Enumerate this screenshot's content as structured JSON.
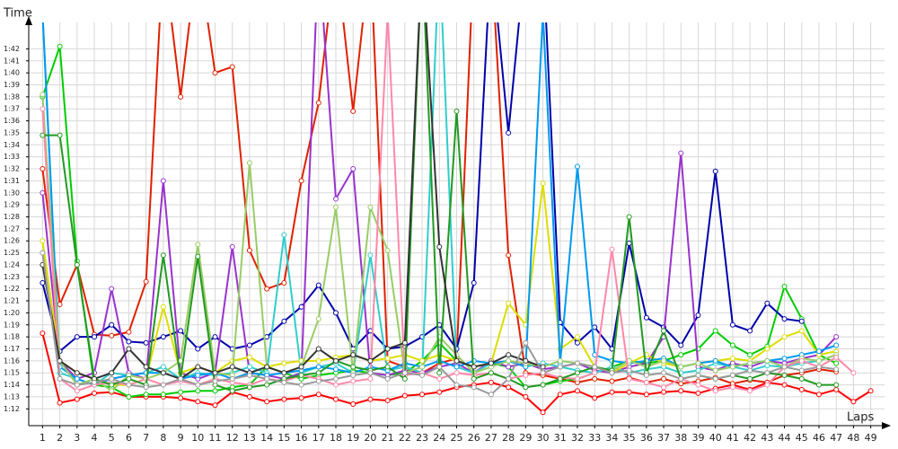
{
  "chart_data": {
    "type": "line",
    "title": "Time",
    "x_label": "Laps",
    "x": [
      1,
      2,
      3,
      4,
      5,
      6,
      7,
      8,
      9,
      10,
      11,
      12,
      13,
      14,
      15,
      16,
      17,
      18,
      19,
      20,
      21,
      22,
      23,
      24,
      25,
      26,
      27,
      28,
      29,
      30,
      31,
      32,
      33,
      34,
      35,
      36,
      37,
      38,
      39,
      40,
      41,
      42,
      43,
      44,
      45,
      46,
      47,
      48,
      49
    ],
    "xlim": [
      0.2,
      49.8
    ],
    "xticks": [
      1,
      2,
      3,
      4,
      5,
      6,
      7,
      8,
      9,
      10,
      11,
      12,
      13,
      14,
      15,
      16,
      17,
      18,
      19,
      20,
      21,
      22,
      23,
      24,
      25,
      26,
      27,
      28,
      29,
      30,
      31,
      32,
      33,
      34,
      35,
      36,
      37,
      38,
      39,
      40,
      41,
      42,
      43,
      44,
      45,
      46,
      47,
      48,
      49
    ],
    "ylim": [
      70.6,
      104.2
    ],
    "yticks": [
      {
        "value": 72,
        "label": "1:12"
      },
      {
        "value": 73,
        "label": "1:13"
      },
      {
        "value": 74,
        "label": "1:14"
      },
      {
        "value": 75,
        "label": "1:15"
      },
      {
        "value": 76,
        "label": "1:16"
      },
      {
        "value": 77,
        "label": "1:17"
      },
      {
        "value": 78,
        "label": "1:18"
      },
      {
        "value": 79,
        "label": "1:19"
      },
      {
        "value": 80,
        "label": "1:20"
      },
      {
        "value": 81,
        "label": "1:21"
      },
      {
        "value": 82,
        "label": "1:22"
      },
      {
        "value": 83,
        "label": "1:23"
      },
      {
        "value": 84,
        "label": "1:24"
      },
      {
        "value": 85,
        "label": "1:25"
      },
      {
        "value": 86,
        "label": "1:26"
      },
      {
        "value": 87,
        "label": "1:27"
      },
      {
        "value": 88,
        "label": "1:28"
      },
      {
        "value": 89,
        "label": "1:29"
      },
      {
        "value": 90,
        "label": "1:30"
      },
      {
        "value": 91,
        "label": "1:31"
      },
      {
        "value": 92,
        "label": "1:32"
      },
      {
        "value": 93,
        "label": "1:33"
      },
      {
        "value": 94,
        "label": "1:34"
      },
      {
        "value": 95,
        "label": "1:35"
      },
      {
        "value": 96,
        "label": "1:36"
      },
      {
        "value": 97,
        "label": "1:37"
      },
      {
        "value": 98,
        "label": "1:38"
      },
      {
        "value": 99,
        "label": "1:39"
      },
      {
        "value": 100,
        "label": "1:40"
      },
      {
        "value": 101,
        "label": "1:41"
      },
      {
        "value": 102,
        "label": "1:42"
      }
    ],
    "grid": true,
    "series": [
      {
        "color": "#ff0000",
        "values": [
          78.3,
          72.5,
          72.8,
          73.3,
          73.4,
          73.0,
          73.0,
          73.0,
          72.9,
          72.6,
          72.3,
          73.4,
          73.0,
          72.6,
          72.8,
          72.9,
          73.2,
          72.8,
          72.4,
          72.8,
          72.7,
          73.1,
          73.2,
          73.4,
          73.8,
          74.0,
          74.2,
          73.8,
          73.0,
          71.7,
          73.2,
          73.5,
          72.9,
          73.4,
          73.4,
          73.2,
          73.4,
          73.5,
          73.3,
          73.7,
          74.0,
          73.6,
          74.2,
          74.0,
          73.6,
          73.2,
          73.6,
          72.6,
          73.5
        ]
      },
      {
        "color": "#e02000",
        "values": [
          92,
          80.7,
          84,
          78.2,
          78.1,
          78.4,
          82.6,
          110,
          98,
          110,
          100,
          100.5,
          85.2,
          82,
          82.5,
          91,
          97.5,
          110,
          96.8,
          110,
          76,
          75.5,
          75,
          75.8,
          76.2,
          110,
          110,
          84.8,
          75,
          74.8,
          74.5,
          74.2,
          74.5,
          74.3,
          74.6,
          74.2,
          74.5,
          74.1,
          74.3,
          74.6,
          74.1,
          74.4,
          74.2,
          74.8,
          75,
          75.3,
          75.1,
          null,
          null
        ]
      },
      {
        "color": "#00cc00",
        "values": [
          98,
          102.2,
          84.3,
          74,
          73.8,
          73,
          73.2,
          73.2,
          73.4,
          73.5,
          73.5,
          73.8,
          74,
          75.5,
          75,
          74.5,
          74.8,
          75,
          75.2,
          75,
          74.8,
          75,
          76,
          77.5,
          76,
          75.5,
          75.8,
          75.5,
          73.8,
          74,
          74.3,
          74.5,
          75,
          75.5,
          76,
          75.8,
          76,
          76.5,
          77,
          78.5,
          77.3,
          76.5,
          77.2,
          82.2,
          79.5,
          76.5,
          75.8,
          null,
          null
        ]
      },
      {
        "color": "#0000aa",
        "values": [
          82.5,
          76.8,
          78,
          78,
          79,
          77.6,
          77.5,
          78,
          78.5,
          77,
          78,
          77,
          77.3,
          78,
          79.3,
          80.5,
          82.3,
          80,
          77,
          78.5,
          77,
          77.2,
          78,
          79,
          77,
          82.5,
          110,
          95,
          110,
          110,
          79.2,
          77.5,
          78.8,
          77,
          85.8,
          79.6,
          78.8,
          77.3,
          79.8,
          91.8,
          79,
          78.5,
          80.8,
          79.5,
          79.3,
          null,
          null,
          null,
          null
        ]
      },
      {
        "color": "#9933cc",
        "values": [
          90,
          76,
          74.5,
          75,
          82,
          75,
          74.5,
          91,
          75,
          74.5,
          75,
          85.5,
          75,
          74.8,
          74.5,
          75,
          110,
          89.5,
          92,
          75,
          74.8,
          75.2,
          75,
          75.5,
          75.8,
          75,
          76,
          75.5,
          75.8,
          75.3,
          75.5,
          75.8,
          75.2,
          75,
          75.5,
          75.8,
          78,
          93.3,
          75.5,
          75.2,
          75.8,
          75.5,
          76,
          75.8,
          76.2,
          76.5,
          78,
          null,
          null
        ]
      },
      {
        "color": "#33cccc",
        "values": [
          105,
          75,
          74.5,
          74,
          75,
          74.8,
          75,
          75.5,
          74.5,
          75,
          74.8,
          75,
          75.5,
          75,
          86.5,
          75,
          75.5,
          75.8,
          75,
          84.8,
          75.2,
          75.5,
          75,
          110,
          75.5,
          75,
          75.8,
          76,
          75.5,
          75.8,
          75.5,
          75.2,
          75,
          75.5,
          75,
          75.3,
          75.5,
          75,
          75.2,
          75.8,
          75.5,
          75.2,
          75.6,
          75.5,
          75.8,
          76,
          76.5,
          null,
          null
        ]
      },
      {
        "color": "#dddd00",
        "values": [
          86,
          76,
          75,
          74.5,
          74,
          74,
          74.5,
          80.5,
          75,
          75.5,
          75,
          76,
          76.3,
          75.5,
          75.8,
          76,
          76,
          76.3,
          76.5,
          76,
          76.2,
          76.5,
          76,
          76.5,
          76,
          75.5,
          75.8,
          80.8,
          79,
          90.8,
          77,
          78,
          75.5,
          75,
          75.8,
          76.5,
          75.8,
          75.5,
          75.8,
          76,
          76.2,
          76,
          77,
          78,
          78.5,
          76.5,
          76.8,
          null,
          null
        ]
      },
      {
        "color": "#0099ee",
        "values": [
          105,
          75.5,
          74.5,
          74,
          74.5,
          74.8,
          75,
          75,
          74.5,
          74.8,
          75,
          74.5,
          75,
          74.8,
          75,
          75.2,
          75.5,
          75.3,
          75,
          75.5,
          75.2,
          75.8,
          75.5,
          76,
          75.5,
          76,
          75.8,
          76,
          75.5,
          105,
          75.8,
          92.2,
          76.5,
          76,
          75.8,
          76,
          76.2,
          75.5,
          75.8,
          76,
          75.5,
          75.8,
          76,
          76.2,
          76.5,
          76.8,
          77.3,
          null,
          null
        ]
      },
      {
        "color": "#99cc66",
        "values": [
          98.2,
          76,
          74,
          74.5,
          73.5,
          74.8,
          74.5,
          75,
          76,
          85.7,
          75,
          74.8,
          92.5,
          75.5,
          75,
          75.5,
          79.5,
          88.8,
          75,
          88.8,
          85.2,
          75,
          75.5,
          78,
          76.5,
          75,
          75.5,
          76,
          75.8,
          75.5,
          76,
          75.8,
          75.5,
          75.2,
          76,
          75.5,
          76,
          75.5,
          75.8,
          75.2,
          75.5,
          75.8,
          76,
          75.5,
          76.2,
          76,
          76.5,
          null,
          null
        ]
      },
      {
        "color": "#ff88aa",
        "values": [
          97,
          74.5,
          73.5,
          74,
          74.2,
          74,
          74.5,
          74,
          74.3,
          74,
          74.5,
          74.2,
          74,
          74.5,
          74.3,
          74.8,
          74.5,
          74,
          74.3,
          74.5,
          105,
          74.8,
          75,
          74.5,
          75,
          74.8,
          75,
          74.5,
          74.8,
          75,
          74.6,
          74.5,
          75,
          85.3,
          74.5,
          74.2,
          73.8,
          74.5,
          74,
          73.5,
          73.8,
          73.5,
          74,
          75.5,
          76,
          75.5,
          76.3,
          75,
          null
        ]
      },
      {
        "color": "#229922",
        "values": [
          94.8,
          94.8,
          84,
          74.5,
          74,
          74.5,
          74,
          84.8,
          74.5,
          84.7,
          74,
          73.5,
          73.8,
          74,
          74.5,
          74.8,
          75,
          76,
          75.5,
          75.2,
          75.5,
          74.5,
          110,
          75,
          96.8,
          74.5,
          75,
          74.5,
          73.8,
          74,
          74.5,
          75,
          75.5,
          75.2,
          88,
          75,
          78.5,
          74.5,
          74.8,
          74.5,
          74.8,
          74.5,
          75,
          74.8,
          74.5,
          74,
          74,
          null,
          null
        ]
      },
      {
        "color": "#333333",
        "values": [
          84,
          76,
          75,
          74.5,
          75,
          77,
          75.5,
          75,
          74.5,
          75.5,
          75,
          75.5,
          75,
          75.5,
          75,
          75.5,
          77,
          76,
          76.5,
          76,
          77,
          77.5,
          110,
          85.5,
          76,
          75.5,
          75.8,
          76.5,
          76,
          75.5,
          null,
          null,
          null,
          null,
          null,
          null,
          null,
          null,
          null,
          null,
          null,
          null,
          null,
          null,
          null,
          null,
          null,
          null,
          null
        ]
      },
      {
        "color": "#999999",
        "values": [
          85,
          74.5,
          74,
          74.2,
          74.5,
          74,
          73.8,
          74,
          74.5,
          74,
          74.3,
          74.5,
          74.8,
          74.5,
          74.2,
          74,
          74.3,
          74.5,
          74.8,
          75,
          74.5,
          75,
          74.8,
          75.5,
          74,
          73.8,
          73.2,
          74.5,
          77.5,
          75,
          75.5,
          75.8,
          75.5,
          75,
          75.2,
          74.8,
          75,
          74.5,
          74.8,
          74.5,
          74.8,
          75.2,
          75,
          75.5,
          75.2,
          75.5,
          75.3,
          null,
          null
        ]
      }
    ]
  }
}
